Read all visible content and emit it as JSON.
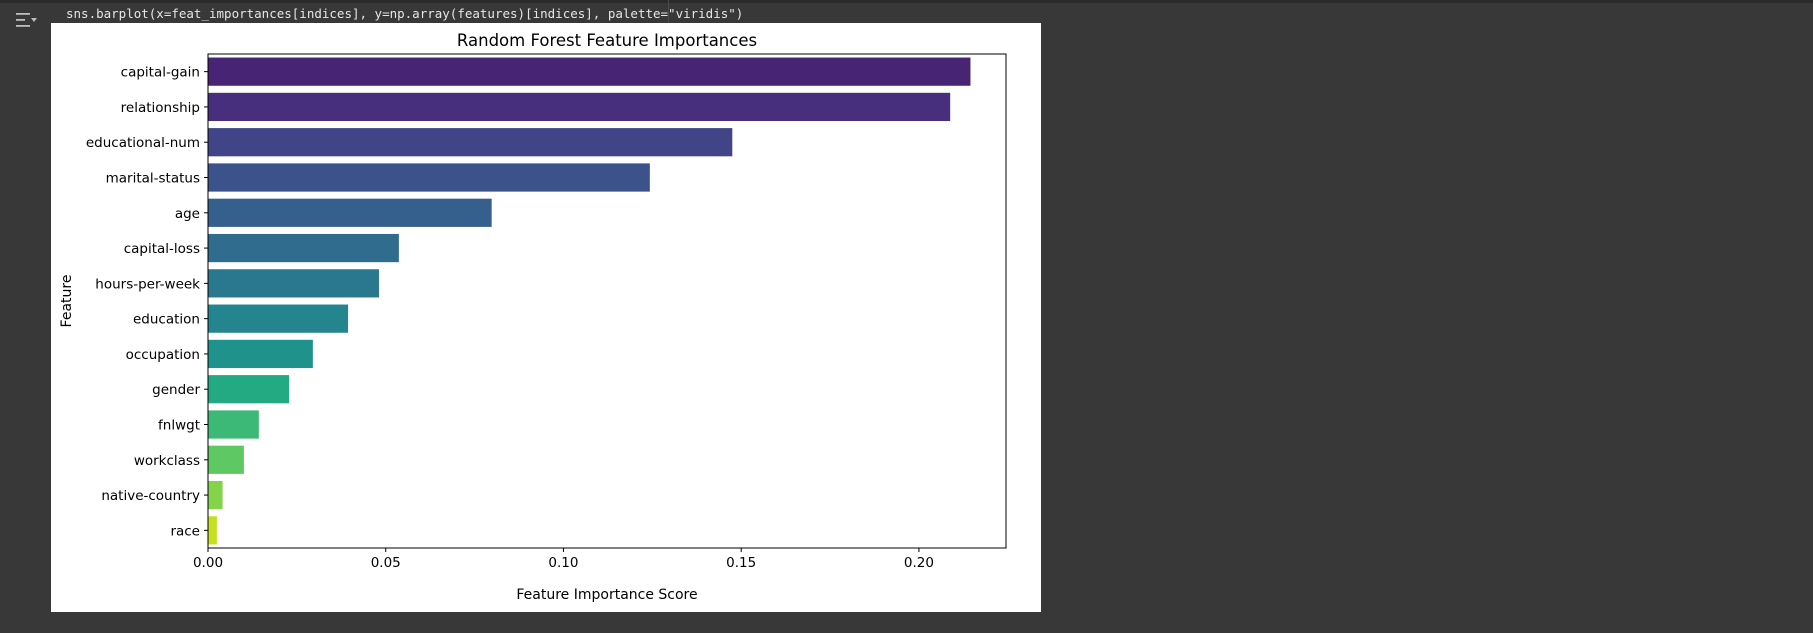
{
  "cell": {
    "code": "sns.barplot(x=feat_importances[indices], y=np.array(features)[indices], palette=\"viridis\")",
    "output_toggle_icon": "output-collapse-icon"
  },
  "chart_data": {
    "type": "bar",
    "orientation": "horizontal",
    "title": "Random Forest Feature Importances",
    "xlabel": "Feature Importance Score",
    "ylabel": "Feature",
    "categories": [
      "capital-gain",
      "relationship",
      "educational-num",
      "marital-status",
      "age",
      "capital-loss",
      "hours-per-week",
      "education",
      "occupation",
      "gender",
      "fnlwgt",
      "workclass",
      "native-country",
      "race"
    ],
    "values": [
      0.2145,
      0.2088,
      0.1475,
      0.1243,
      0.0798,
      0.0537,
      0.0481,
      0.0394,
      0.0295,
      0.0228,
      0.0143,
      0.0101,
      0.0041,
      0.0025
    ],
    "colors": [
      "#482475",
      "#472f7d",
      "#414487",
      "#3b528b",
      "#355f8d",
      "#2f6c8e",
      "#2a788e",
      "#25858e",
      "#1f928c",
      "#24aa83",
      "#3db977",
      "#5ec962",
      "#84d44b",
      "#c5e021"
    ],
    "xlim": [
      0,
      0.2245
    ],
    "xticks": [
      0.0,
      0.05,
      0.1,
      0.15,
      0.2
    ],
    "xtick_labels": [
      "0.00",
      "0.05",
      "0.10",
      "0.15",
      "0.20"
    ],
    "palette": "viridis",
    "grid": false
  }
}
